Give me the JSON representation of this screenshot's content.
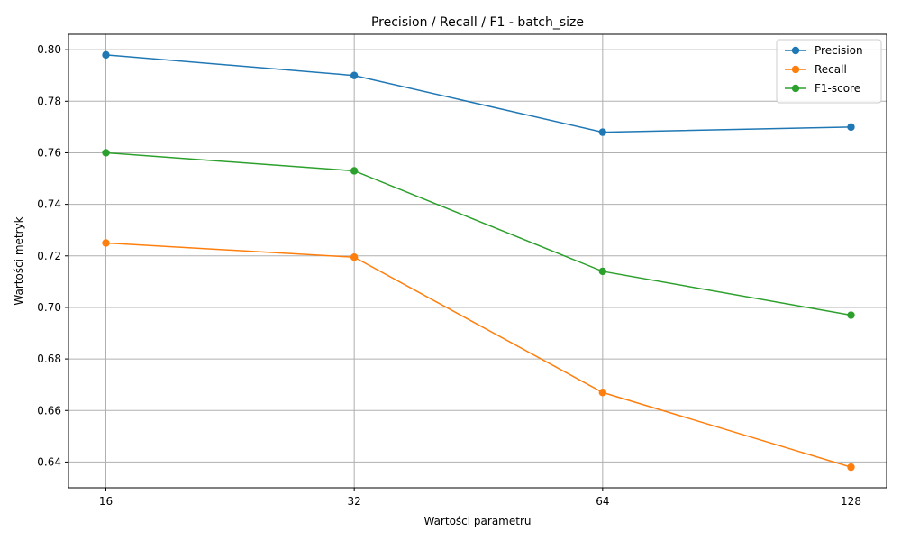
{
  "chart_data": {
    "type": "line",
    "title": "Precision / Recall / F1 - batch_size",
    "xlabel": "Wartości parametru",
    "ylabel": "Wartości metryk",
    "categories": [
      "16",
      "32",
      "64",
      "128"
    ],
    "ylim": [
      0.63,
      0.806
    ],
    "yticks": [
      0.64,
      0.66,
      0.68,
      0.7,
      0.72,
      0.74,
      0.76,
      0.78,
      0.8
    ],
    "grid": true,
    "legend_position": "top-right",
    "series": [
      {
        "name": "Precision",
        "color": "#1f77b4",
        "values": [
          0.798,
          0.79,
          0.768,
          0.77
        ]
      },
      {
        "name": "Recall",
        "color": "#ff7f0e",
        "values": [
          0.725,
          0.7195,
          0.667,
          0.638
        ]
      },
      {
        "name": "F1-score",
        "color": "#2ca02c",
        "values": [
          0.76,
          0.753,
          0.714,
          0.697
        ]
      }
    ]
  }
}
